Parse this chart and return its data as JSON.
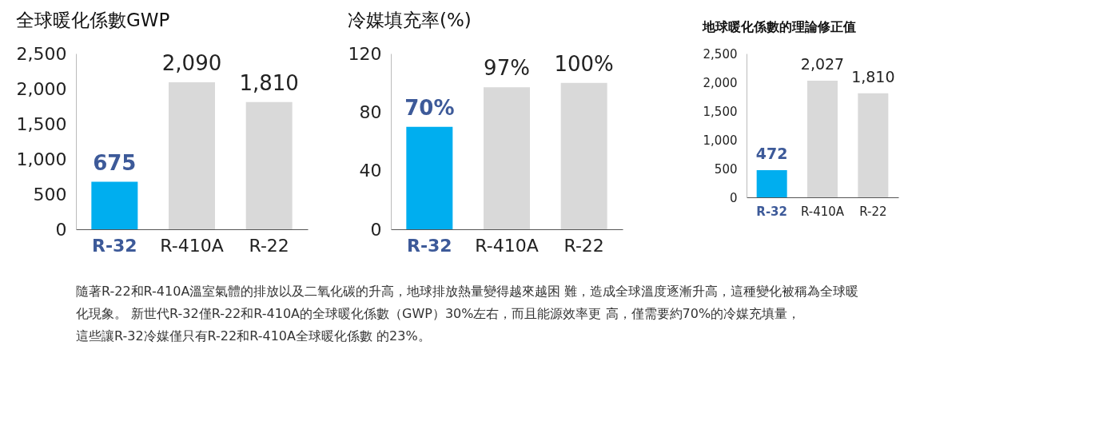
{
  "chart_data": [
    {
      "type": "bar",
      "title": "全球暖化係數GWP",
      "categories": [
        "R-32",
        "R-410A",
        "R-22"
      ],
      "values": [
        675,
        2090,
        1810
      ],
      "colors": [
        "#00aeef",
        "#d9d9d9",
        "#d9d9d9"
      ],
      "value_labels": [
        "675",
        "2,090",
        "1,810"
      ],
      "ylim": [
        0,
        2500
      ],
      "yticks": [
        {
          "value": 0,
          "label": "0"
        },
        {
          "value": 500,
          "label": "500"
        },
        {
          "value": 1000,
          "label": "1,000"
        },
        {
          "value": 1500,
          "label": "1,500"
        },
        {
          "value": 2000,
          "label": "2,000"
        },
        {
          "value": 2500,
          "label": "2,500"
        }
      ],
      "grid": false,
      "annotations": [
        "隨著R-22和R-410A溫室氣體的排放以及二氧化碳的升高，地球排放熱量變得越來越困 難，造成全球溫度逐漸升高，這種變化被稱為全球暖化現象。 新世代R-32僅R-22和R-410A的全球暖化係數（GWP）30%左右，而且能源效率更 高，僅需要約70%的冷媒充填量，這些讓R-32冷媒僅只有R-22和R-410A全球暖化係數 的23%。"
      ]
    },
    {
      "type": "bar",
      "title": "冷媒填充率(%)",
      "categories": [
        "R-32",
        "R-410A",
        "R-22"
      ],
      "values": [
        70,
        97,
        100
      ],
      "colors": [
        "#00aeef",
        "#d9d9d9",
        "#d9d9d9"
      ],
      "value_labels": [
        "70%",
        "97%",
        "100%"
      ],
      "ylim": [
        0,
        120
      ],
      "yticks": [
        0,
        40,
        80,
        120
      ],
      "grid": false
    },
    {
      "type": "bar",
      "title": "地球暖化係數的理論修正值",
      "categories": [
        "R-32",
        "R-410A",
        "R-22"
      ],
      "values": [
        472,
        2027,
        1810
      ],
      "colors": [
        "#00aeef",
        "#d9d9d9",
        "#d9d9d9"
      ],
      "value_labels": [
        "472",
        "2,027",
        "1,810"
      ],
      "ylim": [
        0,
        2500
      ],
      "yticks": [
        {
          "value": 0,
          "label": "0"
        },
        {
          "value": 500,
          "label": "500"
        },
        {
          "value": 1000,
          "label": "1,000"
        },
        {
          "value": 1500,
          "label": "1,500"
        },
        {
          "value": 2000,
          "label": "2,000"
        },
        {
          "value": 2500,
          "label": "2,500"
        }
      ],
      "grid": false
    }
  ]
}
